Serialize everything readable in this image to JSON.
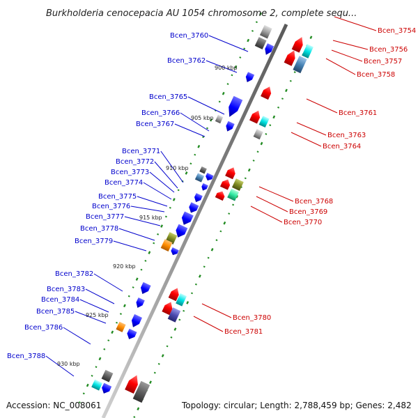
{
  "title": "Burkholderia cenocepacia AU 1054 chromosome 2, complete sequ...",
  "footer": {
    "accession": "Accession: NC_008061",
    "topology": "Topology: circular; Length: 2,788,459 bp; Genes: 2,482"
  },
  "kbp_ticks": [
    "900 kbp",
    "905 kbp",
    "910 kbp",
    "915 kbp",
    "920 kbp",
    "925 kbp",
    "930 kbp"
  ],
  "genes_left": [
    "Bcen_3760",
    "Bcen_3762",
    "Bcen_3765",
    "Bcen_3766",
    "Bcen_3767",
    "Bcen_3771",
    "Bcen_3772",
    "Bcen_3773",
    "Bcen_3774",
    "Bcen_3775",
    "Bcen_3776",
    "Bcen_3777",
    "Bcen_3778",
    "Bcen_3779",
    "Bcen_3782",
    "Bcen_3783",
    "Bcen_3784",
    "Bcen_3785",
    "Bcen_3786",
    "Bcen_3788"
  ],
  "genes_right": [
    "Bcen_3754",
    "Bcen_3756",
    "Bcen_3757",
    "Bcen_3758",
    "Bcen_3761",
    "Bcen_3763",
    "Bcen_3764",
    "Bcen_3768",
    "Bcen_3769",
    "Bcen_3770",
    "Bcen_3780",
    "Bcen_3781"
  ],
  "colors": {
    "forward_strand": "#0000ff",
    "reverse_strand": "#ff0000",
    "left_label": "#0000cc",
    "right_label": "#cc0000",
    "backbone": "#888888",
    "gc_dash": "#228b22",
    "gene_gray": "#9e9e9e",
    "gene_cyan": "#00e5e5",
    "gene_steel": "#4682b4",
    "gene_olive": "#7f8b22",
    "gene_orange": "#ff8c00",
    "gene_seagreen": "#2ee8a0",
    "gene_slate": "#4b4bb0"
  }
}
